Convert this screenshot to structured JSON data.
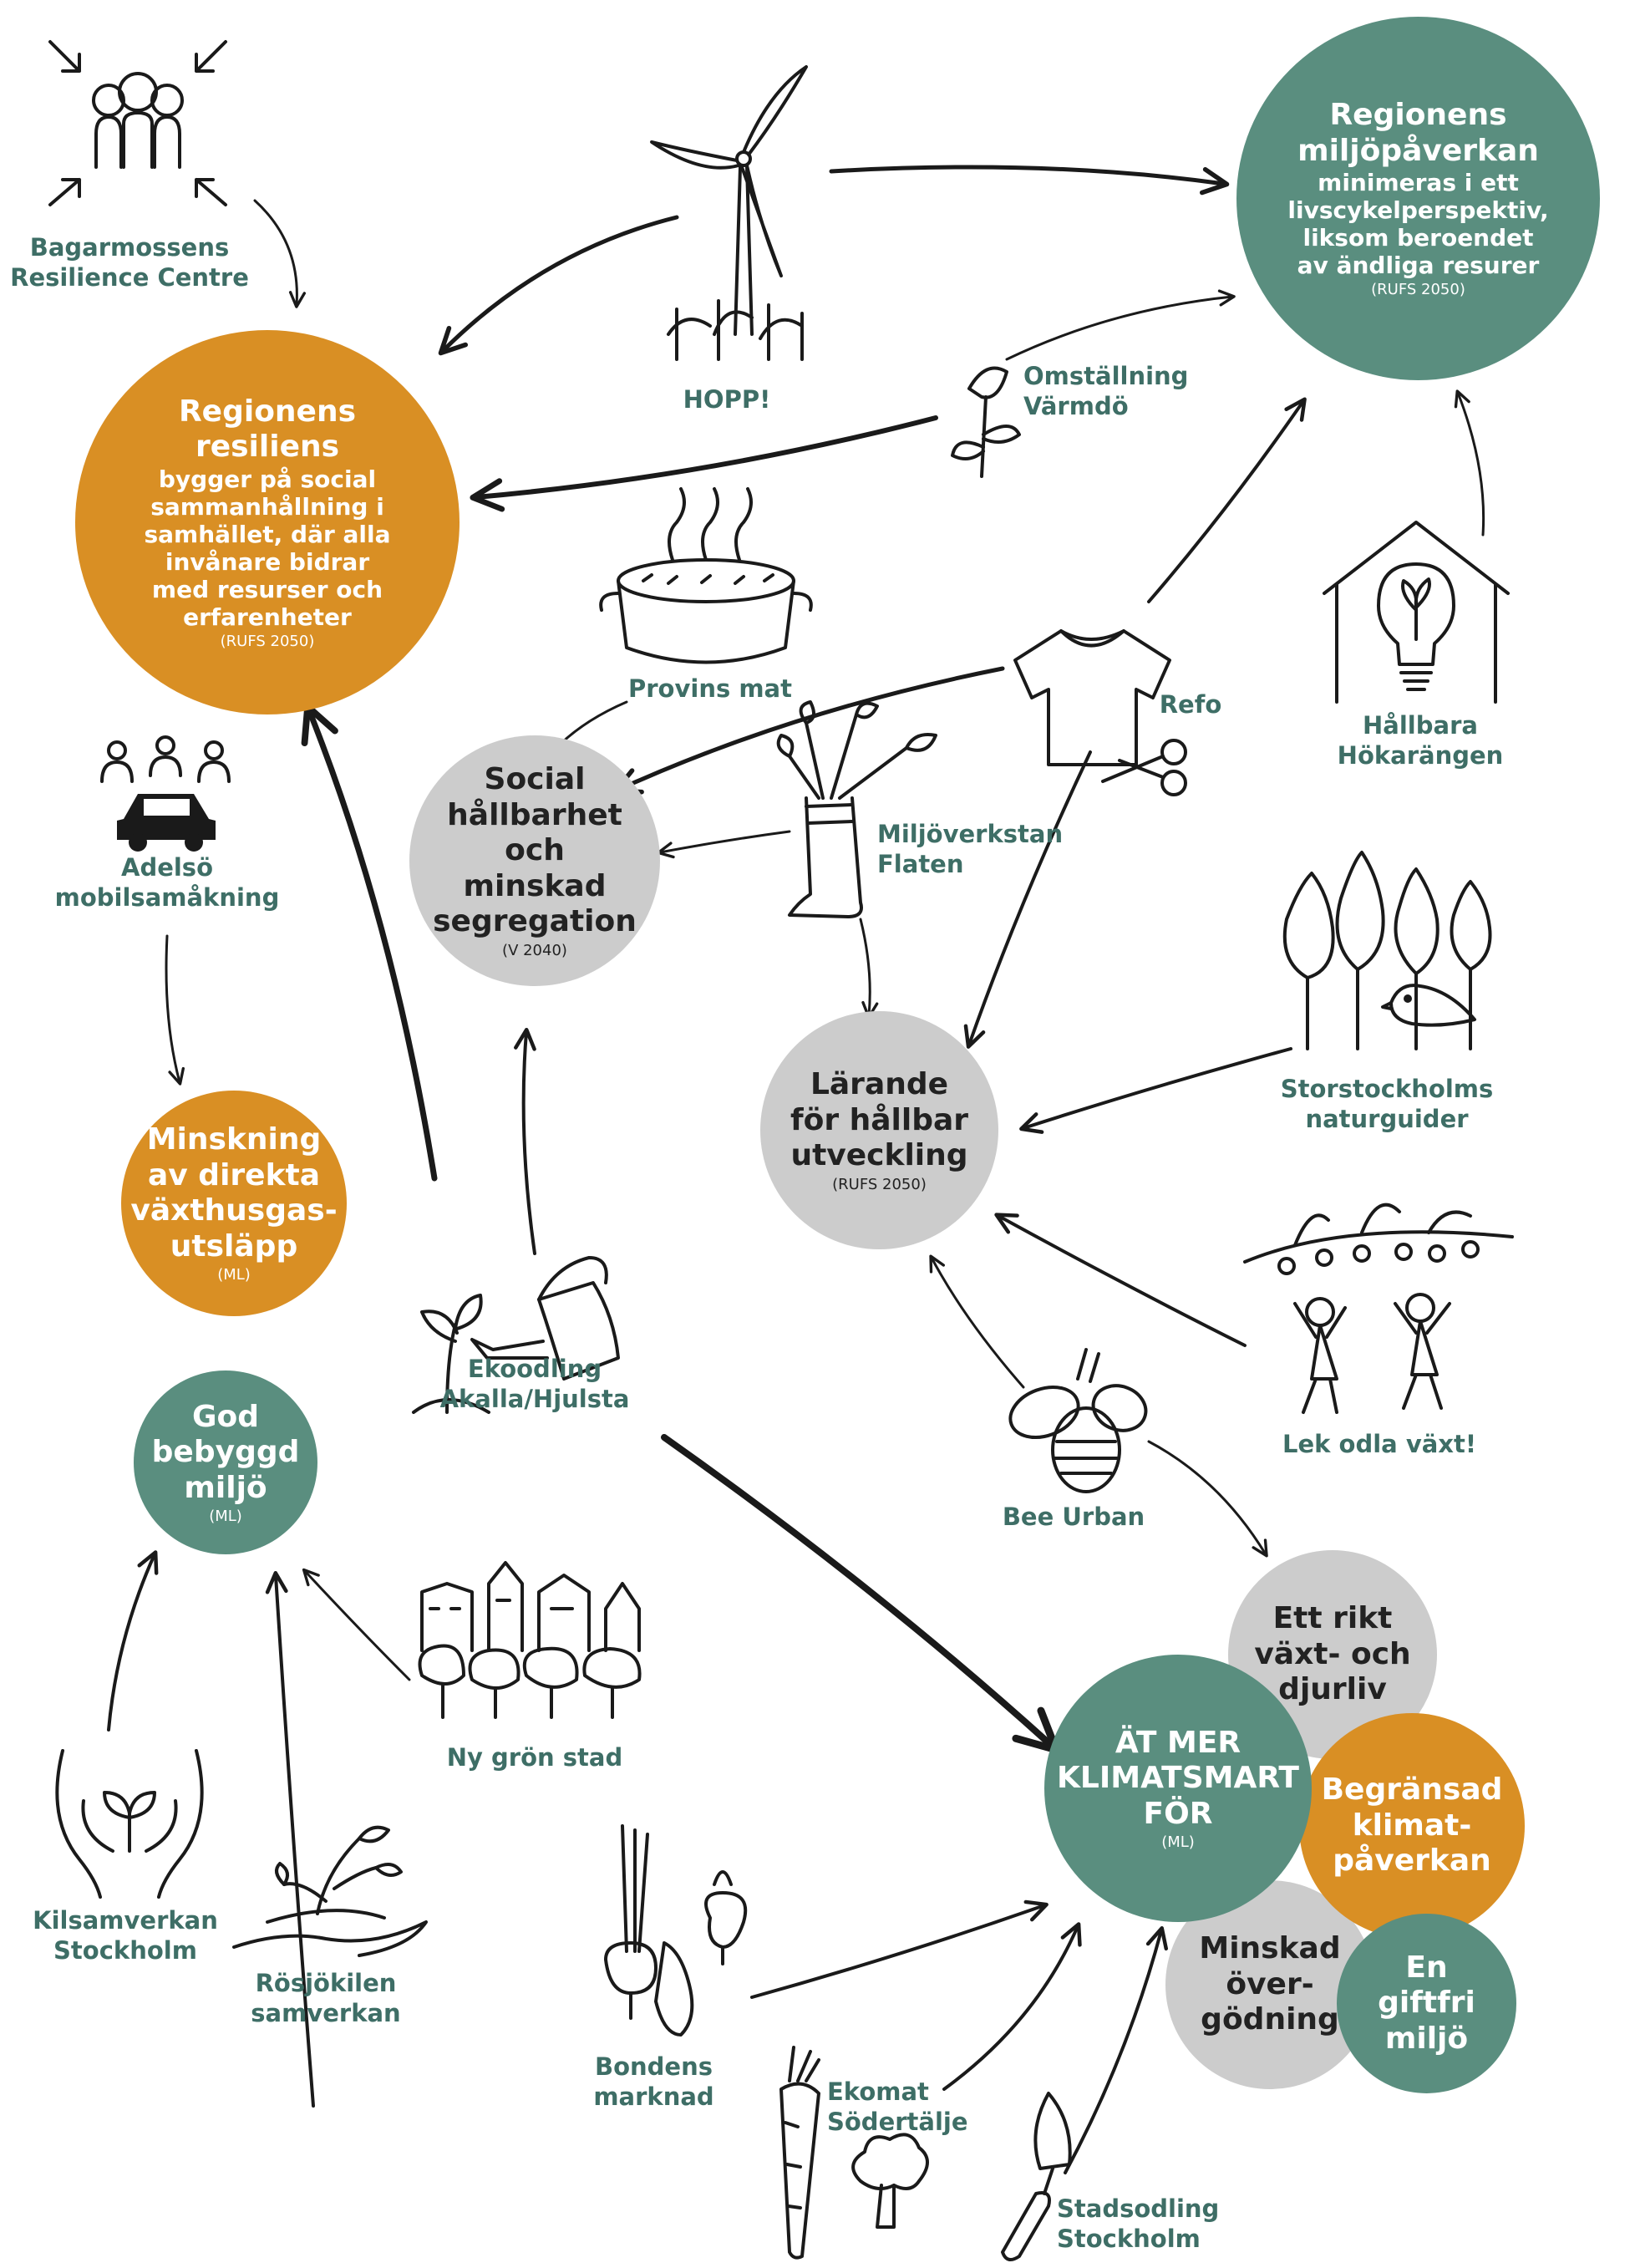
{
  "goals": {
    "regionens_resiliens": {
      "title": "Regionens resiliens",
      "body": "bygger på social sammanhållning i samhället, där alla invånare bidrar med resurser och erfarenheter",
      "ref": "(RUFS 2050)",
      "color": "#d98f24"
    },
    "miljopaverkan": {
      "title": "Regionens miljöpåverkan",
      "body": "minimeras i ett livscykelperspektiv, liksom beroendet av ändliga resurer",
      "ref": "(RUFS 2050)",
      "color": "#5a8e7f"
    },
    "social_hallbarhet": {
      "title": "Social hållbarhet och minskad segregation",
      "ref": "(V 2040)",
      "color": "#cccccc"
    },
    "larande": {
      "title": "Lärande för hållbar utveckling",
      "ref": "(RUFS 2050)",
      "color": "#cccccc"
    },
    "minskning": {
      "title": "Minskning av direkta växthusgas-utsläpp",
      "ref": "(ML)",
      "color": "#d98f24"
    },
    "god_bebyggd": {
      "title": "God bebyggd miljö",
      "ref": "(ML)",
      "color": "#5a8e7f"
    },
    "rikt_vaxt": {
      "title": "Ett rikt växt- och djurliv",
      "color": "#cccccc"
    },
    "at_mer": {
      "title": "ÄT MER KLIMATSMART FÖR",
      "ref": "(ML)",
      "color": "#5a8e7f"
    },
    "begransad": {
      "title": "Begränsad klimat-påverkan",
      "color": "#d98f24"
    },
    "minskad_overgodning": {
      "title": "Minskad över-gödning",
      "color": "#cccccc"
    },
    "giftfri": {
      "title": "En giftfri miljö",
      "color": "#5a8e7f"
    }
  },
  "initiatives": {
    "bagarmossen": "Bagarmossens Resilience Centre",
    "hopp": "HOPP!",
    "omstallning": "Omställning Värmdö",
    "provins": "Provins mat",
    "refo": "Refo",
    "hokarangen": "Hållbara Hökarängen",
    "adelso": "Adelsö mobilsamåkning",
    "miljoverkstan": "Miljöverkstan Flaten",
    "naturguider": "Storstockholms naturguider",
    "ekoodling": "Ekoodling Akalla/Hjulsta",
    "lek": "Lek odla växt!",
    "bee": "Bee Urban",
    "ny_gron": "Ny grön stad",
    "kilsamverkan": "Kilsamverkan Stockholm",
    "rosjokilen": "Rösjökilen samverkan",
    "bondens": "Bondens marknad",
    "ekomat": "Ekomat Södertälje",
    "stadsodling": "Stadsodling Stockholm"
  },
  "icons": [
    "people-group-icon",
    "wind-turbine-icon",
    "flower-icon",
    "pot-icon",
    "tshirt-icon",
    "house-bulb-icon",
    "car-people-icon",
    "boot-plant-icon",
    "trees-bird-icon",
    "watering-can-icon",
    "kids-branch-icon",
    "bee-icon",
    "city-trees-icon",
    "hands-plant-icon",
    "hand-seedling-icon",
    "vegetables-icon",
    "carrot-broccoli-icon",
    "trowel-icon"
  ]
}
